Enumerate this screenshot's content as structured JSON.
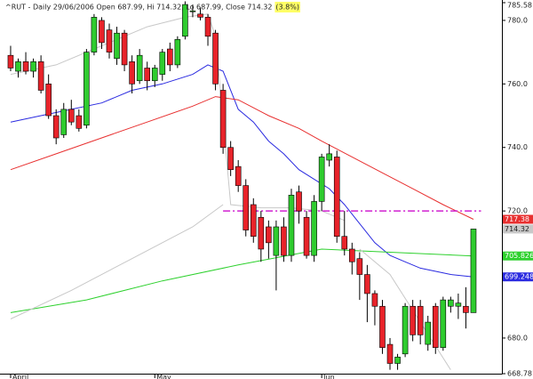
{
  "chart_data": {
    "type": "candlestick",
    "title": "^RUT - Daily 29/06/2006 Open 687.99, Hi 714.32, Lo 687.99, Close 714.32",
    "title_highlight": "(3.8%)",
    "categories": [
      "April",
      null,
      null,
      null,
      null,
      null,
      null,
      null,
      null,
      null,
      null,
      null,
      null,
      null,
      null,
      null,
      null,
      null,
      null,
      "May",
      null,
      null,
      null,
      null,
      null,
      null,
      null,
      null,
      null,
      null,
      null,
      null,
      null,
      null,
      null,
      null,
      null,
      null,
      null,
      null,
      null,
      "Jun",
      null,
      null,
      null,
      null,
      null,
      null,
      null,
      null,
      null,
      null,
      null,
      null,
      null,
      null,
      null,
      null,
      null,
      null,
      null,
      null
    ],
    "open": [
      769,
      764,
      767,
      764,
      767,
      760,
      750,
      744,
      752,
      750,
      747,
      770,
      780,
      777,
      768,
      776,
      767,
      761,
      765,
      761,
      763,
      771,
      766,
      775,
      783,
      782,
      781,
      776,
      758,
      740,
      734,
      728,
      722,
      718,
      715,
      706,
      715,
      706,
      726,
      718,
      706,
      723,
      736,
      737,
      712,
      708,
      705,
      700,
      694,
      690,
      678,
      672,
      675,
      690,
      690,
      678,
      690,
      677,
      690,
      690,
      690,
      687.99
    ],
    "high": [
      772,
      768,
      770,
      768,
      769,
      763,
      752,
      754,
      755,
      752,
      771,
      782,
      781,
      779,
      778,
      777,
      769,
      771,
      767,
      766,
      771,
      773,
      775,
      786,
      785,
      784,
      782,
      777,
      760,
      742,
      736,
      730,
      724,
      720,
      717,
      717,
      718,
      727,
      728,
      720,
      725,
      738,
      741,
      739,
      720,
      710,
      707,
      703,
      695,
      692,
      680,
      675,
      691,
      692,
      692,
      687,
      691,
      693,
      693,
      694,
      696,
      714.32
    ],
    "low": [
      764,
      762,
      763,
      762,
      757,
      749,
      741,
      743,
      747,
      745,
      746,
      769,
      771,
      768,
      766,
      764,
      757,
      760,
      758,
      759,
      761,
      764,
      765,
      774,
      781,
      780,
      772,
      758,
      738,
      731,
      726,
      712,
      710,
      704,
      705,
      695,
      704,
      704,
      716,
      705,
      704,
      720,
      734,
      710,
      706,
      700,
      692,
      685,
      684,
      675,
      670,
      670,
      674,
      679,
      678,
      676,
      675,
      676,
      688,
      686,
      683,
      687.99
    ],
    "close": [
      765,
      767,
      764,
      767,
      758,
      750,
      743,
      752,
      748,
      746,
      770,
      781,
      773,
      770,
      776,
      766,
      760,
      769,
      761,
      765,
      770,
      766,
      774,
      785,
      783,
      781,
      775,
      760,
      740,
      733,
      728,
      714,
      712,
      708,
      710,
      715,
      706,
      725,
      720,
      706,
      723,
      737,
      738,
      712,
      708,
      704,
      700,
      694,
      690,
      677,
      672,
      674,
      690,
      681,
      681,
      685,
      677,
      692,
      692,
      691,
      688,
      714.32
    ],
    "up_color": "#2fcc2f",
    "down_color": "#e8232a",
    "close_box_color": "#c8c8c8",
    "lines": [
      {
        "color": "#2a2ae0",
        "x": [
          0,
          4,
          8,
          12,
          16,
          20,
          24,
          26,
          28,
          30,
          32,
          34,
          36,
          38,
          40,
          42,
          44,
          46,
          48,
          50,
          52,
          54,
          58,
          61
        ],
        "values": [
          748,
          750,
          752,
          754,
          758,
          760,
          763,
          766,
          764,
          752,
          748,
          742,
          738,
          733,
          730,
          727,
          722,
          716,
          710,
          706,
          704,
          702,
          700,
          699.248
        ],
        "value_box": true
      },
      {
        "color": "#e83030",
        "x": [
          0,
          6,
          12,
          18,
          24,
          27,
          30,
          34,
          38,
          41,
          45,
          49,
          53,
          57,
          61
        ],
        "values": [
          733,
          738,
          743,
          748,
          753,
          756,
          755,
          750,
          746,
          742,
          737,
          732,
          727,
          722,
          717.38
        ],
        "value_box": true
      },
      {
        "color": "#2ed12e",
        "x": [
          0,
          10,
          20,
          30,
          41,
          50,
          61
        ],
        "values": [
          688,
          692,
          698,
          703,
          708,
          707,
          705.826
        ],
        "value_box": true
      },
      {
        "color": "#c8c8c8",
        "x": [
          0,
          6,
          12,
          18,
          23,
          26,
          27,
          29,
          33,
          37,
          41,
          44
        ],
        "values": [
          763,
          766,
          772,
          778,
          781,
          782,
          775,
          722,
          721,
          721,
          720,
          717
        ],
        "value_box": false
      },
      {
        "color": "#c8c8c8",
        "x": [
          0,
          8,
          16,
          24,
          28
        ],
        "values": [
          686,
          695,
          705,
          715,
          722
        ],
        "value_box": false
      },
      {
        "color": "#c8c8c8",
        "x": [
          46,
          50,
          54,
          58
        ],
        "values": [
          708,
          700,
          685,
          670
        ],
        "value_box": false
      },
      {
        "color": "#d020d0",
        "x": [
          28,
          62
        ],
        "values": [
          720,
          720
        ],
        "value_box": false,
        "dashed": true
      }
    ],
    "xlim": [
      -1.4,
      64.75
    ],
    "ylim": [
      668.781,
      785.58
    ],
    "yticks": [
      {
        "value": 680,
        "label": "680.0"
      },
      {
        "value": 720,
        "label": "720.0"
      },
      {
        "value": 740,
        "label": "740.0"
      },
      {
        "value": 760,
        "label": "760.0"
      },
      {
        "value": 780,
        "label": "780.0"
      }
    ]
  }
}
